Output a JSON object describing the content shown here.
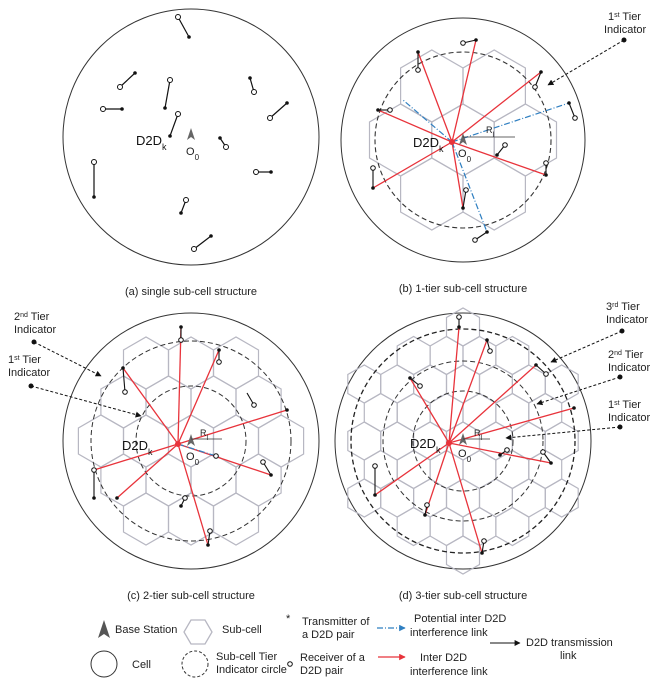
{
  "panels": [
    {
      "key": "a",
      "caption": "(a) single sub-cell structure",
      "d2d": "D2D",
      "d2d_sub": "k",
      "bs": "O",
      "bs_sub": "0"
    },
    {
      "key": "b",
      "caption": "(b) 1-tier sub-cell structure",
      "d2d": "D2D",
      "d2d_sub": "k",
      "bs": "O",
      "bs_sub": "0",
      "radius": "R",
      "radius_sub": "l",
      "indicators": [
        {
          "sup": "st",
          "num": "1",
          "line1": " Tier",
          "line2": "Indicator"
        }
      ]
    },
    {
      "key": "c",
      "caption": "(c) 2-tier sub-cell structure",
      "d2d": "D2D",
      "d2d_sub": "k",
      "bs": "O",
      "bs_sub": "0",
      "radius": "R",
      "radius_sub": "l",
      "indicators": [
        {
          "sup": "nd",
          "num": "2",
          "line1": " Tier",
          "line2": "Indicator"
        },
        {
          "sup": "st",
          "num": "1",
          "line1": " Tier",
          "line2": "Indicator"
        }
      ]
    },
    {
      "key": "d",
      "caption": "(d) 3-tier sub-cell structure",
      "d2d": "D2D",
      "d2d_sub": "k",
      "bs": "O",
      "bs_sub": "0",
      "radius": "R",
      "radius_sub": "l",
      "indicators": [
        {
          "sup": "rd",
          "num": "3",
          "line1": " Tier",
          "line2": "Indicator"
        },
        {
          "sup": "nd",
          "num": "2",
          "line1": " Tier",
          "line2": "Indicator"
        },
        {
          "sup": "st",
          "num": "1",
          "line1": " Tier",
          "line2": "Indicator"
        }
      ]
    }
  ],
  "legend": {
    "base_station": "Base Station",
    "sub_cell": "Sub-cell",
    "transmitter_1": "Transmitter of",
    "transmitter_2": "a D2D pair",
    "potential_1": "Potential inter D2D",
    "potential_2": "interference link",
    "d2d_link_1": "D2D transmission",
    "d2d_link_2": "link",
    "cell": "Cell",
    "tier_circle_1": "Sub-cell Tier",
    "tier_circle_2": "Indicator circle",
    "receiver_1": "Receiver of a",
    "receiver_2": "D2D pair",
    "inter_1": "Inter D2D",
    "inter_2": "interference link"
  },
  "colors": {
    "interference": "#e8333b",
    "potential": "#2f7fc1",
    "hex": "#b7b7c2",
    "circle": "#333333"
  }
}
